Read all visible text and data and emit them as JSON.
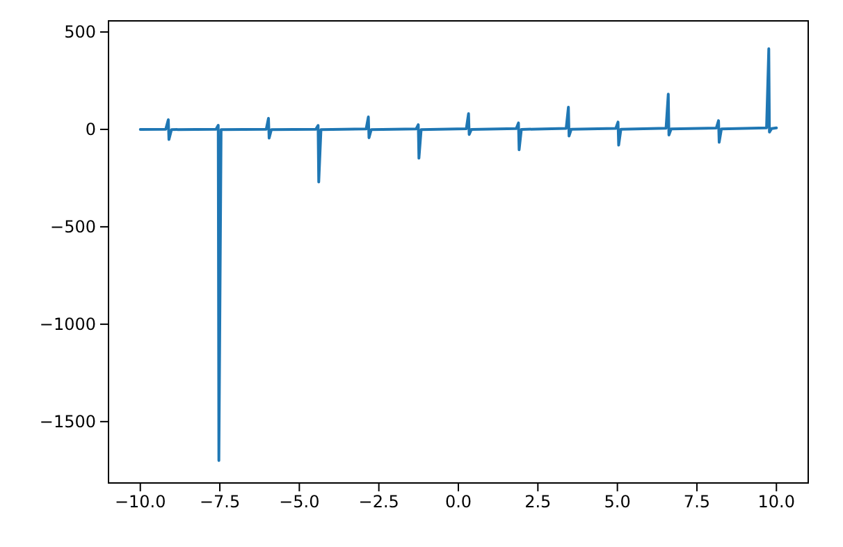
{
  "chart_data": {
    "type": "line",
    "xlim": [
      -11,
      11
    ],
    "ylim": [
      -1815,
      557
    ],
    "xticks": [
      {
        "value": -10,
        "label": "−10.0"
      },
      {
        "value": -7.5,
        "label": "−7.5"
      },
      {
        "value": -5,
        "label": "−5.0"
      },
      {
        "value": -2.5,
        "label": "−2.5"
      },
      {
        "value": 0,
        "label": "0.0"
      },
      {
        "value": 2.5,
        "label": "2.5"
      },
      {
        "value": 5,
        "label": "5.0"
      },
      {
        "value": 7.5,
        "label": "7.5"
      },
      {
        "value": 10,
        "label": "10.0"
      }
    ],
    "yticks": [
      {
        "value": 500,
        "label": "500"
      },
      {
        "value": 0,
        "label": "0"
      },
      {
        "value": -500,
        "label": "−500"
      },
      {
        "value": -1000,
        "label": "−1000"
      },
      {
        "value": -1500,
        "label": "−1500"
      }
    ],
    "grid": false,
    "marker": "none",
    "line_style": "solid",
    "series": [
      {
        "color": "#1f77b4",
        "x": [
          -10,
          -9.2,
          -9.12,
          -9.1,
          -9.02,
          -7.62,
          -7.55,
          -7.53,
          -7.46,
          -6.04,
          -5.97,
          -5.95,
          -5.88,
          -4.48,
          -4.41,
          -4.39,
          -4.32,
          -2.9,
          -2.83,
          -2.81,
          -2.74,
          -1.33,
          -1.26,
          -1.24,
          -1.17,
          0.25,
          0.32,
          0.34,
          0.41,
          1.82,
          1.89,
          1.91,
          1.98,
          3.39,
          3.46,
          3.48,
          3.55,
          4.95,
          5.02,
          5.04,
          5.11,
          6.53,
          6.6,
          6.62,
          6.69,
          8.11,
          8.18,
          8.2,
          8.27,
          9.69,
          9.76,
          9.78,
          9.85,
          10
        ],
        "values": [
          0,
          1,
          50,
          -52,
          -1,
          1,
          21,
          -1700,
          -1,
          1,
          57,
          -45,
          -1,
          1,
          20,
          -270,
          -1,
          2,
          64,
          -43,
          -1,
          2,
          24,
          -148,
          -1,
          3,
          81,
          -26,
          0,
          4,
          33,
          -105,
          0,
          5,
          114,
          -34,
          1,
          5,
          38,
          -81,
          1,
          6,
          181,
          -29,
          2,
          7,
          45,
          -66,
          2,
          8,
          414,
          -14,
          4,
          8
        ]
      }
    ]
  }
}
